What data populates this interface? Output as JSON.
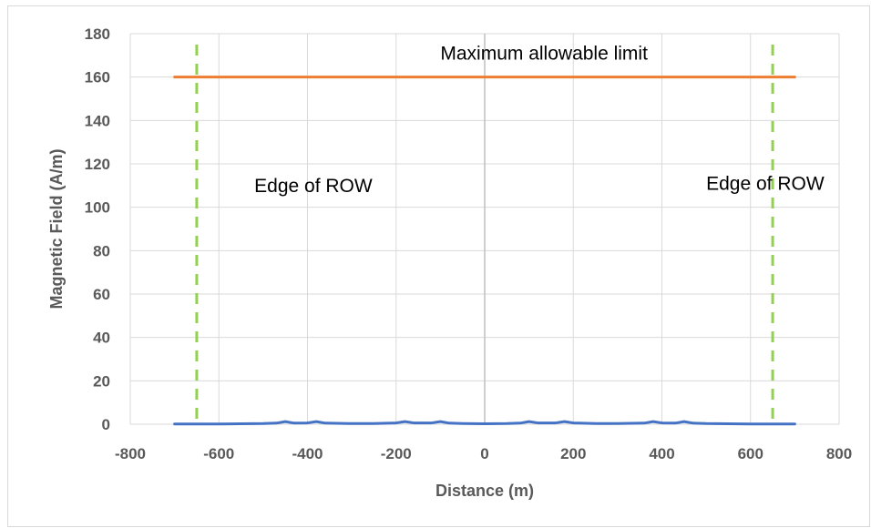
{
  "chart_data": {
    "type": "line",
    "title": "",
    "xlabel": "Distance (m)",
    "ylabel": "Magnetic Field (A/m)",
    "xlim": [
      -800,
      800
    ],
    "ylim": [
      0,
      180
    ],
    "x_ticks": [
      -800,
      -600,
      -400,
      -200,
      0,
      200,
      400,
      600,
      800
    ],
    "y_ticks": [
      0,
      20,
      40,
      60,
      80,
      100,
      120,
      140,
      160,
      180
    ],
    "x_tick_labels": [
      "-800",
      "-600",
      "-400",
      "-200",
      "0",
      "200",
      "400",
      "600",
      "800"
    ],
    "y_tick_labels": [
      "0",
      "20",
      "40",
      "60",
      "80",
      "100",
      "120",
      "140",
      "160",
      "180"
    ],
    "grid": true,
    "legend": "none",
    "series": [
      {
        "color": "#4472c4",
        "x": [
          -700,
          -650,
          -600,
          -550,
          -500,
          -470,
          -450,
          -430,
          -400,
          -380,
          -360,
          -300,
          -250,
          -200,
          -180,
          -160,
          -120,
          -100,
          -80,
          -50,
          0,
          50,
          80,
          100,
          120,
          160,
          180,
          200,
          250,
          300,
          360,
          380,
          400,
          430,
          450,
          470,
          500,
          550,
          600,
          650,
          700
        ],
        "y": [
          0.1,
          0.1,
          0.1,
          0.2,
          0.3,
          0.5,
          1.2,
          0.5,
          0.6,
          1.2,
          0.5,
          0.3,
          0.3,
          0.6,
          1.2,
          0.6,
          0.6,
          1.2,
          0.5,
          0.3,
          0.2,
          0.3,
          0.5,
          1.2,
          0.6,
          0.6,
          1.2,
          0.6,
          0.3,
          0.3,
          0.5,
          1.2,
          0.6,
          0.5,
          1.2,
          0.5,
          0.3,
          0.2,
          0.1,
          0.1,
          0.1
        ]
      },
      {
        "color": "#ed7d31",
        "x": [
          -700,
          700
        ],
        "y": [
          160,
          160
        ]
      }
    ],
    "vertical_lines": [
      {
        "x": -650,
        "color": "#92d050",
        "style": "dashed"
      },
      {
        "x": 650,
        "color": "#92d050",
        "style": "dashed"
      }
    ],
    "annotations": [
      {
        "text": "Maximum allowable limit",
        "x": -100,
        "y": 168
      },
      {
        "text": "Edge of ROW",
        "x": -520,
        "y": 107
      },
      {
        "text": "Edge of ROW",
        "x": 500,
        "y": 108
      }
    ],
    "colors": {
      "field": "#4472c4",
      "limit": "#ed7d31",
      "row_edge": "#92d050",
      "grid": "#d9d9d9",
      "zero_axis": "#bfbfbf"
    }
  }
}
